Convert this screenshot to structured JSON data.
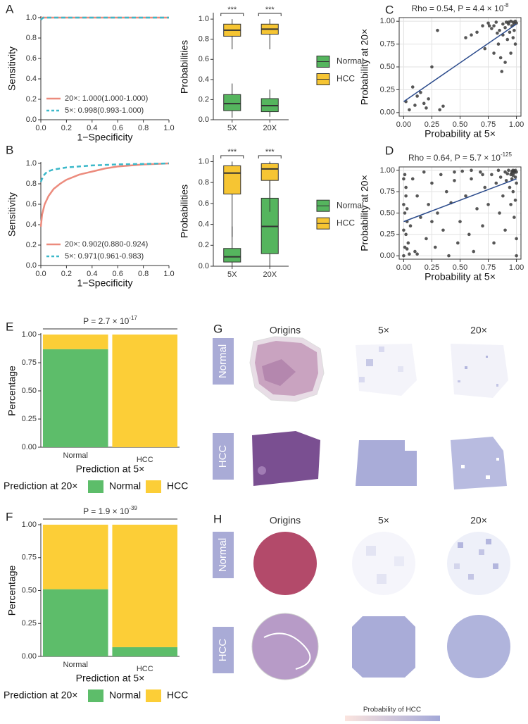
{
  "chart_data": [
    {
      "type": "line",
      "panel": "A",
      "x_label": "1−Specificity",
      "y_label": "Sensitivity",
      "xlim": [
        0,
        1
      ],
      "ylim": [
        0,
        1
      ],
      "xticks": [
        {
          "value": 0,
          "label": "0.0"
        },
        0.2,
        0.4,
        0.6,
        0.8,
        {
          "value": 1,
          "label": "1.0"
        }
      ],
      "yticks": [
        {
          "value": 0,
          "label": "0.0"
        },
        0.2,
        0.4,
        0.6,
        0.8,
        {
          "value": 1,
          "label": "1.0"
        }
      ],
      "series": [
        {
          "name": "20×: 1.000(1.000-1.000)",
          "color": "#ec8b7d",
          "dashed": false,
          "x": [
            0,
            1
          ],
          "values": [
            1,
            1
          ]
        },
        {
          "name": "5×: 0.998(0.993-1.000)",
          "color": "#3bb8c9",
          "dashed": true,
          "x": [
            0,
            0.01,
            0.02,
            1
          ],
          "values": [
            0.98,
            0.99,
            1,
            1
          ]
        }
      ]
    },
    {
      "type": "box",
      "panel": "",
      "y_label": "Probabilities",
      "categories": [
        "5X",
        "20X"
      ],
      "significance": [
        "***",
        "***"
      ],
      "ylim": [
        0,
        1.05
      ],
      "yticks": [
        {
          "value": 0,
          "label": "0.0"
        },
        0.2,
        0.4,
        0.6,
        0.8,
        {
          "value": 1,
          "label": "1.0"
        }
      ],
      "series": [
        {
          "name": "Normal",
          "color": "#55b55e",
          "min": [
            0.02,
            0.03
          ],
          "q1": [
            0.09,
            0.08
          ],
          "median": [
            0.16,
            0.14
          ],
          "q3": [
            0.25,
            0.21
          ],
          "max": [
            0.36,
            0.3
          ]
        },
        {
          "name": "HCC",
          "color": "#f6c533",
          "min": [
            0.7,
            0.7
          ],
          "q1": [
            0.83,
            0.85
          ],
          "median": [
            0.89,
            0.9
          ],
          "q3": [
            0.95,
            0.95
          ],
          "max": [
            1,
            1
          ]
        }
      ]
    },
    {
      "type": "scatter",
      "panel": "C",
      "title": "Rho = 0.54, P = 4.4 × 10",
      "title_exponent": "-8",
      "x_label": "Probability at 5×",
      "y_label": "Probability at 20×",
      "grid": true,
      "color": "#3a3a3a",
      "xlim": [
        -0.04,
        1.04
      ],
      "ylim": [
        -0.04,
        1.04
      ],
      "xticks": [
        {
          "value": 0,
          "label": "0.00"
        },
        0.25,
        {
          "value": 0.5,
          "label": "0.50"
        },
        0.75,
        {
          "value": 1,
          "label": "1.00"
        }
      ],
      "yticks": [
        {
          "value": 0,
          "label": "0.00"
        },
        0.25,
        {
          "value": 0.5,
          "label": "0.50"
        },
        0.75,
        {
          "value": 1,
          "label": "1.00"
        }
      ],
      "x": [
        0.02,
        0.05,
        0.08,
        0.1,
        0.12,
        0.15,
        0.18,
        0.2,
        0.22,
        0.25,
        0.3,
        0.32,
        0.35,
        0.55,
        0.6,
        0.65,
        0.7,
        0.72,
        0.75,
        0.78,
        0.8,
        0.8,
        0.82,
        0.84,
        0.85,
        0.86,
        0.88,
        0.88,
        0.9,
        0.9,
        0.91,
        0.92,
        0.93,
        0.94,
        0.95,
        0.95,
        0.96,
        0.97,
        0.97,
        0.98,
        0.98,
        0.99,
        0.99,
        1.0,
        0.87,
        0.76,
        0.83,
        0.93
      ],
      "values": [
        0.12,
        0.03,
        0.28,
        0.08,
        0.18,
        0.22,
        0.1,
        0.05,
        0.15,
        0.5,
        0.9,
        0.03,
        0.07,
        0.82,
        0.85,
        0.88,
        0.95,
        0.7,
        0.98,
        0.92,
        0.65,
        0.95,
        0.99,
        0.75,
        0.9,
        0.6,
        0.97,
        0.85,
        0.55,
        0.93,
        0.99,
        0.8,
        0.97,
        0.88,
        1.0,
        0.65,
        0.95,
        0.82,
        0.99,
        0.9,
        0.97,
        0.75,
        1.0,
        0.98,
        0.45,
        0.95,
        0.87,
        0.99
      ],
      "fit_line": {
        "color": "#2b4b8c",
        "x": [
          0,
          1
        ],
        "values": [
          0.12,
          0.97
        ]
      }
    },
    {
      "type": "line",
      "panel": "B",
      "x_label": "1−Specificity",
      "y_label": "Sensitivity",
      "xlim": [
        0,
        1
      ],
      "ylim": [
        0,
        1
      ],
      "xticks": [
        {
          "value": 0,
          "label": "0.0"
        },
        0.2,
        0.4,
        0.6,
        0.8,
        {
          "value": 1,
          "label": "1.0"
        }
      ],
      "yticks": [
        {
          "value": 0,
          "label": "0.0"
        },
        0.2,
        0.4,
        0.6,
        0.8,
        {
          "value": 1,
          "label": "1.0"
        }
      ],
      "series": [
        {
          "name": "20×: 0.902(0.880-0.924)",
          "color": "#ec8b7d",
          "dashed": false,
          "x": [
            0,
            0.01,
            0.03,
            0.06,
            0.1,
            0.15,
            0.2,
            0.3,
            0.4,
            0.5,
            0.6,
            0.8,
            1
          ],
          "values": [
            0.38,
            0.5,
            0.6,
            0.68,
            0.75,
            0.8,
            0.84,
            0.89,
            0.92,
            0.95,
            0.97,
            0.99,
            1
          ]
        },
        {
          "name": "5×: 0.971(0.961-0.983)",
          "color": "#3bb8c9",
          "dashed": true,
          "x": [
            0,
            0.02,
            0.05,
            0.1,
            0.2,
            0.4,
            0.6,
            1
          ],
          "values": [
            0.82,
            0.88,
            0.92,
            0.94,
            0.96,
            0.98,
            0.99,
            1
          ]
        }
      ]
    },
    {
      "type": "box",
      "panel": "",
      "y_label": "Probabilities",
      "categories": [
        "5X",
        "20X"
      ],
      "significance": [
        "***",
        "***"
      ],
      "ylim": [
        0,
        1.05
      ],
      "yticks": [
        {
          "value": 0,
          "label": "0.0"
        },
        0.2,
        0.4,
        0.6,
        0.8,
        {
          "value": 1,
          "label": "1.0"
        }
      ],
      "series": [
        {
          "name": "Normal",
          "color": "#55b55e",
          "min": [
            0,
            0
          ],
          "q1": [
            0.04,
            0.12
          ],
          "median": [
            0.09,
            0.38
          ],
          "q3": [
            0.17,
            0.65
          ],
          "max": [
            0.38,
            0.96
          ]
        },
        {
          "name": "HCC",
          "color": "#f6c533",
          "min": [
            0.28,
            0.52
          ],
          "q1": [
            0.69,
            0.82
          ],
          "median": [
            0.89,
            0.93
          ],
          "q3": [
            0.96,
            0.98
          ],
          "max": [
            1,
            1
          ]
        }
      ]
    },
    {
      "type": "scatter",
      "panel": "D",
      "title": "Rho = 0.64, P = 5.7 × 10",
      "title_exponent": "-125",
      "x_label": "Probability at 5×",
      "y_label": "Probability at 20×",
      "grid": true,
      "color": "#3a3a3a",
      "xlim": [
        -0.04,
        1.04
      ],
      "ylim": [
        -0.04,
        1.04
      ],
      "xticks": [
        {
          "value": 0,
          "label": "0.00"
        },
        0.25,
        {
          "value": 0.5,
          "label": "0.50"
        },
        0.75,
        {
          "value": 1,
          "label": "1.00"
        }
      ],
      "yticks": [
        {
          "value": 0,
          "label": "0.00"
        },
        0.25,
        {
          "value": 0.5,
          "label": "0.50"
        },
        0.75,
        {
          "value": 1,
          "label": "1.00"
        }
      ],
      "x": [
        0.0,
        0.01,
        0.02,
        0.03,
        0.0,
        0.02,
        0.05,
        0.01,
        0.03,
        0.04,
        0.06,
        0.08,
        0.1,
        0.12,
        0.15,
        0.18,
        0.2,
        0.22,
        0.25,
        0.28,
        0.3,
        0.33,
        0.35,
        0.38,
        0.4,
        0.42,
        0.45,
        0.48,
        0.5,
        0.52,
        0.55,
        0.58,
        0.6,
        0.62,
        0.65,
        0.68,
        0.7,
        0.72,
        0.75,
        0.78,
        0.8,
        0.82,
        0.84,
        0.85,
        0.86,
        0.88,
        0.9,
        0.9,
        0.91,
        0.92,
        0.93,
        0.94,
        0.95,
        0.95,
        0.96,
        0.96,
        0.97,
        0.97,
        0.98,
        0.98,
        0.99,
        0.99,
        1.0,
        1.0,
        1.0,
        0.99,
        0.98,
        0.97,
        1.0,
        0.96,
        0.0,
        0.01,
        0.02,
        0.0,
        0.03,
        0.6,
        0.45,
        0.12,
        0.7,
        0.25
      ],
      "values": [
        0.0,
        0.1,
        0.25,
        0.4,
        0.6,
        0.8,
        0.02,
        0.95,
        0.55,
        0.15,
        0.35,
        0.9,
        0.05,
        0.7,
        0.45,
        0.98,
        0.2,
        0.6,
        0.85,
        0.1,
        0.5,
        0.95,
        0.3,
        0.75,
        0.0,
        0.62,
        0.88,
        0.15,
        0.4,
        0.99,
        0.7,
        0.25,
        0.9,
        0.05,
        0.55,
        0.98,
        0.35,
        0.8,
        0.6,
        0.95,
        0.15,
        0.85,
        1.0,
        0.5,
        0.92,
        0.7,
        0.98,
        0.3,
        0.88,
        0.96,
        1.0,
        0.8,
        0.95,
        0.6,
        0.99,
        0.9,
        1.0,
        0.75,
        0.97,
        0.45,
        1.0,
        0.92,
        0.98,
        0.85,
        0.2,
        0.65,
        0.99,
        0.94,
        0.0,
        0.97,
        0.3,
        0.5,
        0.7,
        0.9,
        0.08,
        1.0,
        0.98,
        0.02,
        0.95,
        0.4
      ],
      "fit_line": {
        "color": "#2b4b8c",
        "x": [
          0,
          1
        ],
        "values": [
          0.4,
          0.9
        ]
      }
    },
    {
      "type": "stacked_bar",
      "panel": "E",
      "title": "P = 2.7 × 10",
      "title_exponent": "-17",
      "x_label": "Prediction at 5×",
      "y_label": "Percentage",
      "legend_title": "Prediction at 20×",
      "categories": [
        "Normal",
        "HCC"
      ],
      "ylim": [
        0,
        1
      ],
      "yticks": [
        {
          "value": 0,
          "label": "0.00"
        },
        0.25,
        {
          "value": 0.5,
          "label": "0.50"
        },
        0.75,
        {
          "value": 1,
          "label": "1.00"
        }
      ],
      "series": [
        {
          "name": "Normal",
          "color": "#5dbd6a",
          "values": [
            0.87,
            0
          ]
        },
        {
          "name": "HCC",
          "color": "#fcce37",
          "values": [
            0.13,
            1
          ]
        }
      ]
    },
    {
      "type": "stacked_bar",
      "panel": "F",
      "title": "P = 1.9 × 10",
      "title_exponent": "-39",
      "x_label": "Prediction at 5×",
      "y_label": "Percentage",
      "legend_title": "Prediction at 20×",
      "categories": [
        "Normal",
        "HCC"
      ],
      "ylim": [
        0,
        1
      ],
      "yticks": [
        {
          "value": 0,
          "label": "0.00"
        },
        0.25,
        {
          "value": 0.5,
          "label": "0.50"
        },
        0.75,
        {
          "value": 1,
          "label": "1.00"
        }
      ],
      "series": [
        {
          "name": "Normal",
          "color": "#5dbd6a",
          "values": [
            0.51,
            0.07
          ]
        },
        {
          "name": "HCC",
          "color": "#fcce37",
          "values": [
            0.49,
            0.93
          ]
        }
      ]
    }
  ],
  "image_panels": [
    {
      "panel": "G",
      "columns": [
        "Origins",
        "5×",
        "20×"
      ],
      "rows": [
        "Normal",
        "HCC"
      ]
    },
    {
      "panel": "H",
      "columns": [
        "Origins",
        "5×",
        "20×"
      ],
      "rows": [
        "Normal",
        "HCC"
      ]
    }
  ],
  "colorbar_label": "Probability of HCC"
}
